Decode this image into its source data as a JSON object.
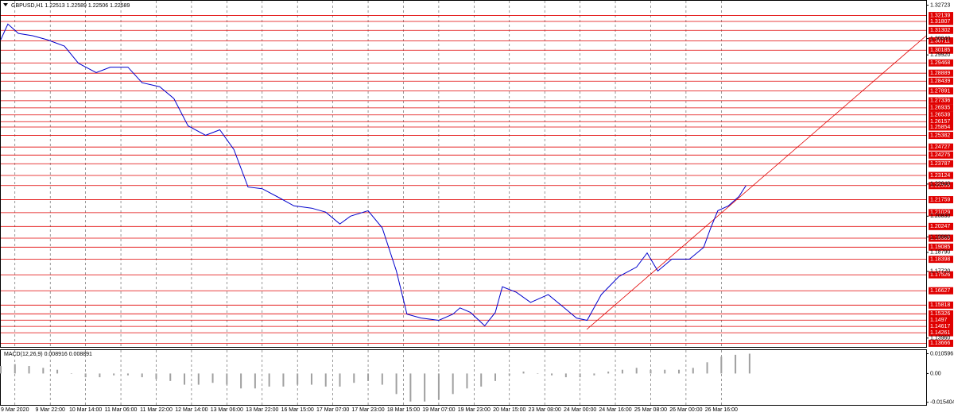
{
  "chart_data": [
    {
      "type": "line",
      "title": "GBPUSD,H1  1.22513 1.22589 1.22506 1.22589",
      "color": "#0000cc",
      "x": [
        0,
        2,
        5,
        9,
        13,
        18,
        22,
        27,
        31,
        36,
        40,
        45,
        49,
        53,
        58,
        62,
        66,
        70,
        74,
        79,
        83,
        88,
        92,
        96,
        99,
        104,
        108,
        112,
        115,
        119,
        124,
        128,
        130,
        133,
        137,
        140,
        142,
        146,
        150,
        155,
        159,
        163,
        166,
        170,
        175,
        180,
        183,
        186,
        190,
        195,
        199,
        201,
        203,
        206,
        209,
        211
      ],
      "values": [
        1.3078,
        1.3166,
        1.3113,
        1.31,
        1.3078,
        1.3042,
        1.2945,
        1.2892,
        1.2923,
        1.2923,
        1.2835,
        1.2813,
        1.2746,
        1.2592,
        1.2539,
        1.257,
        1.2459,
        1.2247,
        1.2238,
        1.2185,
        1.2141,
        1.2128,
        1.2106,
        1.2039,
        1.2083,
        1.2114,
        1.2017,
        1.1774,
        1.1531,
        1.1509,
        1.1496,
        1.1531,
        1.1566,
        1.154,
        1.1465,
        1.154,
        1.1685,
        1.1654,
        1.1597,
        1.1641,
        1.1575,
        1.1509,
        1.1496,
        1.1641,
        1.1743,
        1.1796,
        1.1876,
        1.1774,
        1.1841,
        1.1841,
        1.1907,
        1.2017,
        1.2114,
        1.2141,
        1.2194,
        1.2256
      ],
      "xlim": [
        0,
        262
      ],
      "xticks": [
        {
          "value": 4,
          "label": "9 Mar 2020"
        },
        {
          "value": 14,
          "label": "9 Mar 22:00"
        },
        {
          "value": 24,
          "label": "10 Mar 14:00"
        },
        {
          "value": 34,
          "label": "11 Mar 06:00"
        },
        {
          "value": 44,
          "label": "11 Mar 22:00"
        },
        {
          "value": 54,
          "label": "12 Mar 14:00"
        },
        {
          "value": 64,
          "label": "13 Mar 06:00"
        },
        {
          "value": 74,
          "label": "13 Mar 22:00"
        },
        {
          "value": 84,
          "label": "16 Mar 15:00"
        },
        {
          "value": 94,
          "label": "17 Mar 07:00"
        },
        {
          "value": 104,
          "label": "17 Mar 23:00"
        },
        {
          "value": 114,
          "label": "18 Mar 15:00"
        },
        {
          "value": 124,
          "label": "19 Mar 07:00"
        },
        {
          "value": 134,
          "label": "19 Mar 23:00"
        },
        {
          "value": 144,
          "label": "20 Mar 15:00"
        },
        {
          "value": 154,
          "label": "23 Mar 08:00"
        },
        {
          "value": 164,
          "label": "24 Mar 00:00"
        },
        {
          "value": 174,
          "label": "24 Mar 16:00"
        },
        {
          "value": 184,
          "label": "25 Mar 08:00"
        },
        {
          "value": 194,
          "label": "26 Mar 00:00"
        },
        {
          "value": 204,
          "label": "26 Mar 16:00"
        }
      ],
      "ylim": [
        1.1346,
        1.3297
      ],
      "yticks": [
        1.32723,
        {
          "value": 1.3084,
          "label": "1.30840"
        },
        {
          "value": 1.2992,
          "label": "1.29920"
        },
        {
          "value": 1.2264,
          "label": "1.22640"
        },
        {
          "value": 1.2083,
          "label": "1.20830"
        },
        {
          "value": 1.1966,
          "label": "1.19660"
        },
        {
          "value": 1.1879,
          "label": "1.18790"
        },
        {
          "value": 1.1772,
          "label": "1.17720"
        },
        {
          "value": 1.1396,
          "label": "1.13960"
        }
      ],
      "levels": [
        1.32139,
        1.31807,
        1.31302,
        1.30711,
        1.30185,
        1.29468,
        1.28889,
        1.28439,
        1.27891,
        1.27336,
        1.26935,
        1.26539,
        1.26157,
        1.25854,
        1.25382,
        1.24727,
        1.24275,
        1.23787,
        1.23124,
        1.22555,
        1.21759,
        1.21029,
        1.20247,
        1.19589,
        1.19085,
        1.18398,
        1.17526,
        1.16627,
        1.15818,
        1.15326,
        1.1497,
        1.14617,
        1.14261,
        1.13666
      ],
      "level_color": "#e00000",
      "grid": true
    },
    {
      "type": "bar",
      "title": "MACD(12,26,9) 0.008916 0.008891",
      "color": "#a0a0a0",
      "x": [
        0,
        4,
        8,
        12,
        16,
        20,
        24,
        28,
        32,
        36,
        40,
        44,
        48,
        52,
        56,
        60,
        64,
        68,
        72,
        76,
        80,
        84,
        88,
        92,
        96,
        100,
        104,
        108,
        112,
        116,
        120,
        124,
        128,
        132,
        136,
        140,
        144,
        148,
        152,
        156,
        160,
        164,
        168,
        172,
        176,
        180,
        184,
        188,
        192,
        196,
        200,
        204,
        208,
        212
      ],
      "values": [
        0.004,
        0.005,
        0.004,
        0.003,
        0.002,
        0,
        -0.002,
        -0.002,
        -0.001,
        -0.001,
        -0.002,
        -0.003,
        -0.004,
        -0.006,
        -0.006,
        -0.005,
        -0.006,
        -0.008,
        -0.008,
        -0.007,
        -0.007,
        -0.006,
        -0.006,
        -0.007,
        -0.007,
        -0.005,
        -0.004,
        -0.006,
        -0.011,
        -0.015,
        -0.015,
        -0.014,
        -0.011,
        -0.008,
        -0.007,
        -0.004,
        -0.001,
        0.001,
        0,
        -0.001,
        -0.002,
        -0.002,
        -0.001,
        0.001,
        0.002,
        0.003,
        0.002,
        0.002,
        0.002,
        0.003,
        0.006,
        0.009,
        0.01,
        0.0106
      ],
      "xlim": [
        0,
        262
      ],
      "ylim": [
        -0.0168,
        0.0125
      ],
      "yticks": [
        0.010596,
        {
          "value": 0,
          "label": "0.00"
        },
        -0.015404
      ]
    }
  ]
}
